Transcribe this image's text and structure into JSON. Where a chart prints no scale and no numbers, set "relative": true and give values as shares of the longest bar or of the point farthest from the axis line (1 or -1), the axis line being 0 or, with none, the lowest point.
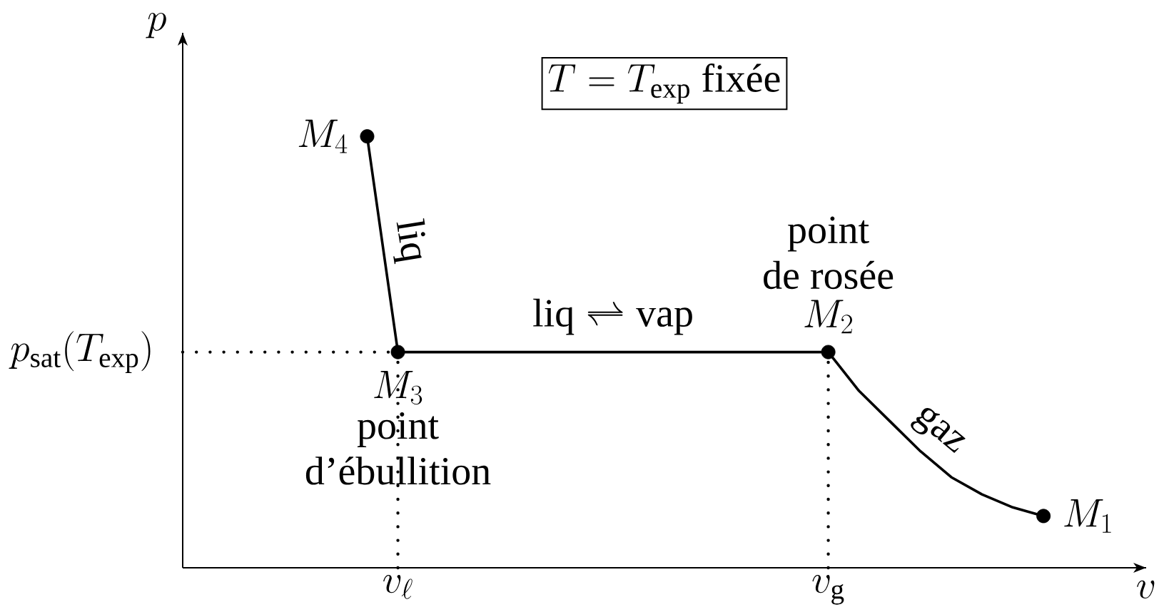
{
  "chart_data": {
    "type": "line",
    "relative": true,
    "title": "T = T_{\\mathrm{exp}}\\ \\mbox{fixée}",
    "categories": [
      null,
      null,
      null,
      null,
      null,
      null,
      "v_{\\ell}",
      null,
      null,
      null,
      null,
      null,
      null,
      null,
      null,
      null,
      null,
      null,
      null,
      null,
      "v_{\\mathrm{g}}",
      null,
      null,
      null,
      null,
      null,
      null,
      null
    ],
    "series": [
      {
        "color": "#000000",
        "values": [
          null,
          null,
          null,
          null,
          null,
          1,
          0.5,
          0.5,
          0.5,
          0.5,
          0.5,
          0.5,
          0.5,
          0.5,
          0.5,
          0.5,
          0.5,
          0.5,
          0.5,
          0.5,
          0.5,
          0.41,
          0.34,
          0.27,
          0.21,
          0.17,
          0.14,
          0.12
        ]
      },
      {
        "type": "scatter",
        "color": "#000000",
        "marker": "circle",
        "values": [
          null,
          null,
          null,
          null,
          null,
          1,
          0.5,
          null,
          null,
          null,
          null,
          null,
          null,
          null,
          null,
          null,
          null,
          null,
          null,
          null,
          0.5,
          null,
          null,
          null,
          null,
          null,
          null,
          0.12
        ]
      },
      {
        "type": "line",
        "color": "#000000",
        "line_style": "dotted",
        "x": [
          "v_{\\ell}",
          "v_{\\ell}"
        ],
        "values": [
          0,
          0.5
        ]
      },
      {
        "type": "line",
        "color": "#000000",
        "line_style": "dotted",
        "x": [
          "v_{\\mathrm{g}}",
          "v_{\\mathrm{g}}"
        ],
        "values": [
          0,
          0.5
        ]
      }
    ],
    "ref_lines": [
      {
        "axis": "y",
        "value": 0.5,
        "label": "p_{\\mathrm{sat}}(T_{\\mathrm{exp}})",
        "line_style": "dotted"
      }
    ],
    "annotations": [
      "M_4",
      {
        "text": "M_3",
        "x": "v_{\\ell}",
        "y": 0.5
      },
      {
        "text": "point d’ébullition",
        "x": "v_{\\ell}",
        "y": 0.5
      },
      {
        "text": "M_2",
        "x": "v_{\\mathrm{g}}",
        "y": 0.5
      },
      {
        "text": "point de rosée",
        "x": "v_{\\mathrm{g}}",
        "y": 0.5
      },
      "M_1",
      "liq",
      "gaz",
      "\\mbox{liq} \\rightleftharpoons \\mbox{vap}",
      "v",
      "p"
    ]
  }
}
